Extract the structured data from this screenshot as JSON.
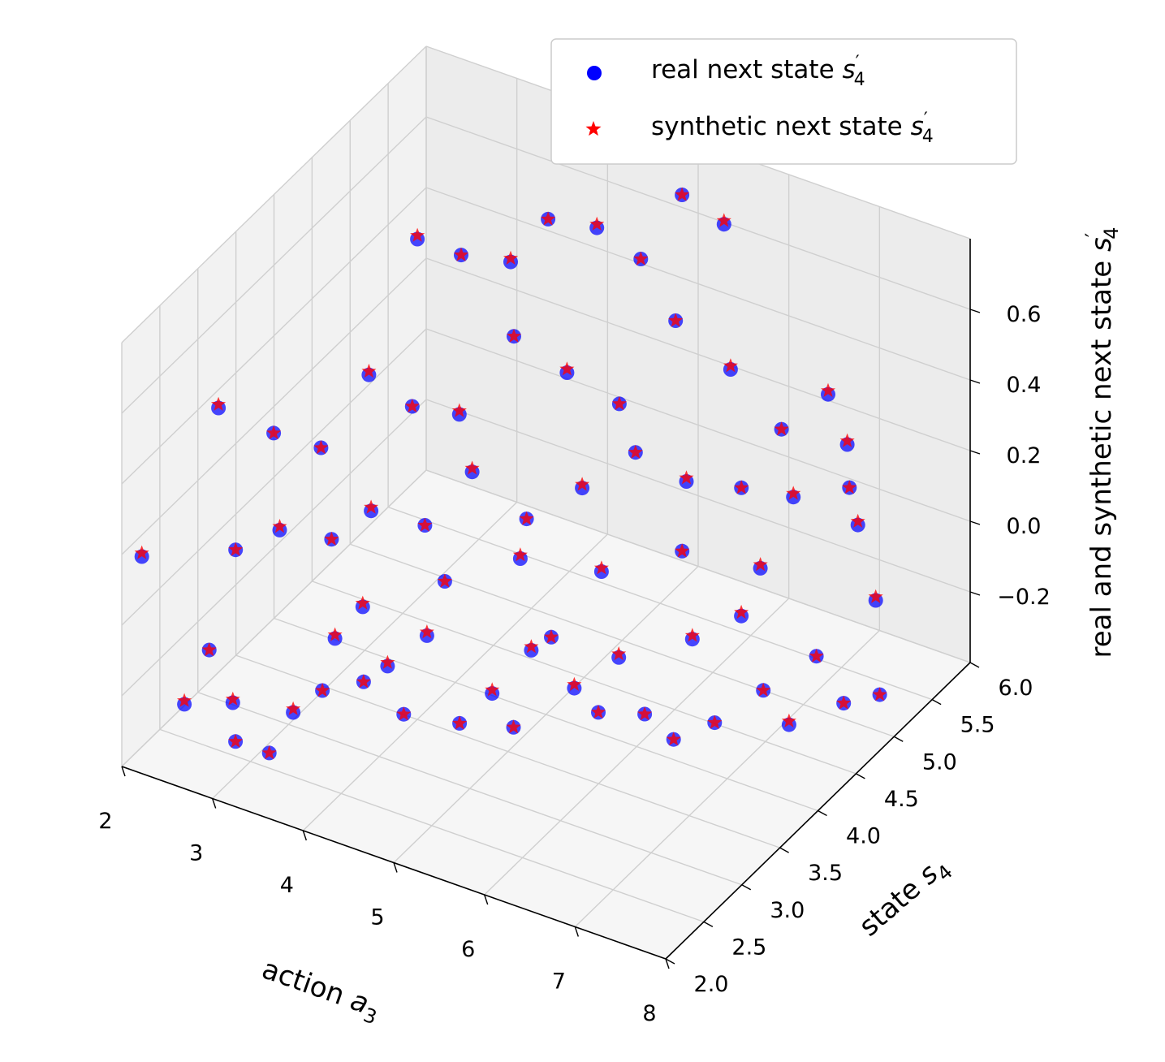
{
  "colors": {
    "real": "#0000ff",
    "synthetic": "#ff0000",
    "pane": "#f2f2f2",
    "grid": "#cfcfcf"
  },
  "legend": {
    "placement": "top-right",
    "entries": [
      {
        "series": "real",
        "prefix": "real next state ",
        "symbol": "s",
        "prime": "′",
        "subscript": "4",
        "marker": "circle"
      },
      {
        "series": "synthetic",
        "prefix": "synthetic next state ",
        "symbol": "s",
        "prime": "′",
        "subscript": "4",
        "marker": "star"
      }
    ]
  },
  "chart_data": {
    "type": "scatter",
    "projection": "3d",
    "grid": true,
    "xlabel": {
      "prefix": "action ",
      "symbol": "a",
      "subscript": "3"
    },
    "ylabel": {
      "prefix": "state ",
      "symbol": "s",
      "subscript": "4"
    },
    "zlabel": {
      "prefix": "real and synthetic next state ",
      "symbol": "s",
      "prime": "′",
      "subscript": "4"
    },
    "xlim": [
      2,
      8
    ],
    "ylim": [
      2,
      6
    ],
    "zlim": [
      -0.4,
      0.8
    ],
    "xticks": [
      "2",
      "3",
      "4",
      "5",
      "6",
      "7",
      "8"
    ],
    "yticks": [
      "2.0",
      "2.5",
      "3.0",
      "3.5",
      "4.0",
      "4.5",
      "5.0",
      "5.5",
      "6.0"
    ],
    "zticks": [
      "−0.2",
      "0.0",
      "0.2",
      "0.4",
      "0.6"
    ],
    "series": [
      {
        "name": "real next state s′4",
        "key": "real",
        "marker": "circle",
        "points": [
          [
            2.12,
            2.12,
            0.18
          ],
          [
            2.43,
            2.31,
            -0.25
          ],
          [
            2.62,
            2.41,
            -0.1
          ],
          [
            2.78,
            2.53,
            -0.26
          ],
          [
            2.86,
            2.47,
            -0.35
          ],
          [
            3.14,
            2.58,
            -0.38
          ],
          [
            3.32,
            2.68,
            -0.27
          ],
          [
            3.55,
            2.79,
            -0.21
          ],
          [
            3.63,
            2.86,
            -0.07
          ],
          [
            3.87,
            2.95,
            -0.19
          ],
          [
            4.05,
            3.05,
            -0.15
          ],
          [
            4.17,
            3.12,
            -0.29
          ],
          [
            4.35,
            3.21,
            -0.07
          ],
          [
            4.61,
            3.33,
            -0.32
          ],
          [
            4.86,
            3.46,
            -0.24
          ],
          [
            5.02,
            3.55,
            -0.34
          ],
          [
            5.14,
            3.64,
            -0.13
          ],
          [
            5.31,
            3.7,
            -0.09
          ],
          [
            5.48,
            3.8,
            -0.24
          ],
          [
            5.67,
            3.89,
            -0.31
          ],
          [
            5.82,
            3.98,
            -0.16
          ],
          [
            6.03,
            4.07,
            -0.32
          ],
          [
            6.24,
            4.2,
            -0.4
          ],
          [
            6.38,
            4.28,
            -0.12
          ],
          [
            6.55,
            4.37,
            -0.36
          ],
          [
            6.76,
            4.47,
            -0.06
          ],
          [
            6.91,
            4.58,
            -0.28
          ],
          [
            7.11,
            4.68,
            -0.38
          ],
          [
            7.32,
            4.79,
            -0.19
          ],
          [
            7.52,
            4.91,
            -0.33
          ],
          [
            7.8,
            5.05,
            -0.31
          ],
          [
            2.21,
            3.02,
            0.42
          ],
          [
            2.66,
            3.21,
            0.35
          ],
          [
            2.93,
            3.51,
            0.27
          ],
          [
            3.24,
            3.77,
            0.45
          ],
          [
            3.5,
            4.03,
            0.33
          ],
          [
            3.86,
            4.22,
            0.3
          ],
          [
            4.21,
            4.52,
            0.49
          ],
          [
            4.56,
            4.8,
            0.36
          ],
          [
            4.92,
            5.06,
            0.25
          ],
          [
            5.33,
            5.31,
            0.47
          ],
          [
            5.71,
            5.58,
            0.31
          ],
          [
            6.12,
            5.76,
            0.14
          ],
          [
            6.5,
            5.92,
            0.24
          ],
          [
            6.92,
            5.7,
            0.06
          ],
          [
            7.24,
            5.43,
            0.04
          ],
          [
            7.63,
            5.2,
            -0.09
          ],
          [
            2.5,
            2.9,
            0.07
          ],
          [
            2.81,
            3.11,
            0.11
          ],
          [
            3.13,
            3.41,
            0.05
          ],
          [
            3.39,
            3.62,
            0.11
          ],
          [
            3.74,
            3.91,
            0.04
          ],
          [
            4.06,
            4.15,
            0.17
          ],
          [
            4.45,
            4.4,
            0.02
          ],
          [
            4.82,
            4.69,
            0.08
          ],
          [
            5.19,
            4.95,
            0.16
          ],
          [
            5.55,
            5.19,
            0.06
          ],
          [
            5.93,
            5.46,
            0.02
          ],
          [
            6.31,
            5.69,
            -0.02
          ],
          [
            6.72,
            5.91,
            0.12
          ],
          [
            3.12,
            4.55,
            0.66
          ],
          [
            3.46,
            4.72,
            0.61
          ],
          [
            3.83,
            4.93,
            0.58
          ],
          [
            4.1,
            5.1,
            0.69
          ],
          [
            4.42,
            5.36,
            0.64
          ],
          [
            4.77,
            5.52,
            0.55
          ],
          [
            5.04,
            5.74,
            0.71
          ],
          [
            5.36,
            5.91,
            0.62
          ],
          [
            3.65,
            3.2,
            -0.05
          ],
          [
            4.22,
            3.6,
            -0.01
          ],
          [
            4.7,
            4.02,
            0.01
          ],
          [
            5.26,
            4.42,
            -0.06
          ],
          [
            5.83,
            4.8,
            -0.03
          ],
          [
            6.4,
            5.15,
            -0.1
          ]
        ]
      },
      {
        "name": "synthetic next state s′4",
        "key": "synthetic",
        "marker": "star",
        "points": [
          [
            2.12,
            2.12,
            0.19
          ],
          [
            2.43,
            2.31,
            -0.24
          ],
          [
            2.62,
            2.41,
            -0.1
          ],
          [
            2.78,
            2.53,
            -0.25
          ],
          [
            2.86,
            2.47,
            -0.35
          ],
          [
            3.14,
            2.58,
            -0.38
          ],
          [
            3.32,
            2.68,
            -0.26
          ],
          [
            3.55,
            2.79,
            -0.21
          ],
          [
            3.63,
            2.86,
            -0.06
          ],
          [
            3.87,
            2.95,
            -0.19
          ],
          [
            4.05,
            3.05,
            -0.14
          ],
          [
            4.17,
            3.12,
            -0.29
          ],
          [
            4.35,
            3.21,
            -0.06
          ],
          [
            4.61,
            3.33,
            -0.32
          ],
          [
            4.86,
            3.46,
            -0.23
          ],
          [
            5.02,
            3.55,
            -0.34
          ],
          [
            5.14,
            3.64,
            -0.12
          ],
          [
            5.31,
            3.7,
            -0.09
          ],
          [
            5.48,
            3.8,
            -0.23
          ],
          [
            5.67,
            3.89,
            -0.31
          ],
          [
            5.82,
            3.98,
            -0.15
          ],
          [
            6.03,
            4.07,
            -0.32
          ],
          [
            6.24,
            4.2,
            -0.4
          ],
          [
            6.38,
            4.28,
            -0.11
          ],
          [
            6.55,
            4.37,
            -0.36
          ],
          [
            6.76,
            4.47,
            -0.05
          ],
          [
            6.91,
            4.58,
            -0.28
          ],
          [
            7.11,
            4.68,
            -0.37
          ],
          [
            7.32,
            4.79,
            -0.19
          ],
          [
            7.52,
            4.91,
            -0.33
          ],
          [
            7.8,
            5.05,
            -0.31
          ],
          [
            2.21,
            3.02,
            0.43
          ],
          [
            2.66,
            3.21,
            0.35
          ],
          [
            2.93,
            3.51,
            0.27
          ],
          [
            3.24,
            3.77,
            0.46
          ],
          [
            3.5,
            4.03,
            0.33
          ],
          [
            3.86,
            4.22,
            0.31
          ],
          [
            4.21,
            4.52,
            0.49
          ],
          [
            4.56,
            4.8,
            0.37
          ],
          [
            4.92,
            5.06,
            0.25
          ],
          [
            5.33,
            5.31,
            0.47
          ],
          [
            5.71,
            5.58,
            0.32
          ],
          [
            6.12,
            5.76,
            0.14
          ],
          [
            6.5,
            5.92,
            0.25
          ],
          [
            6.92,
            5.7,
            0.06
          ],
          [
            7.24,
            5.43,
            0.05
          ],
          [
            7.63,
            5.2,
            -0.08
          ],
          [
            2.5,
            2.9,
            0.07
          ],
          [
            2.81,
            3.11,
            0.12
          ],
          [
            3.13,
            3.41,
            0.05
          ],
          [
            3.39,
            3.62,
            0.12
          ],
          [
            3.74,
            3.91,
            0.04
          ],
          [
            4.06,
            4.15,
            0.18
          ],
          [
            4.45,
            4.4,
            0.02
          ],
          [
            4.82,
            4.69,
            0.09
          ],
          [
            5.19,
            4.95,
            0.16
          ],
          [
            5.55,
            5.19,
            0.07
          ],
          [
            5.93,
            5.46,
            0.02
          ],
          [
            6.31,
            5.69,
            -0.01
          ],
          [
            6.72,
            5.91,
            0.13
          ],
          [
            3.12,
            4.55,
            0.67
          ],
          [
            3.46,
            4.72,
            0.61
          ],
          [
            3.83,
            4.93,
            0.59
          ],
          [
            4.1,
            5.1,
            0.69
          ],
          [
            4.42,
            5.36,
            0.65
          ],
          [
            4.77,
            5.52,
            0.55
          ],
          [
            5.04,
            5.74,
            0.71
          ],
          [
            5.36,
            5.91,
            0.63
          ],
          [
            3.65,
            3.2,
            -0.04
          ],
          [
            4.22,
            3.6,
            -0.01
          ],
          [
            4.7,
            4.02,
            0.02
          ],
          [
            5.26,
            4.42,
            -0.05
          ],
          [
            5.83,
            4.8,
            -0.03
          ],
          [
            6.4,
            5.15,
            -0.09
          ]
        ]
      }
    ]
  }
}
